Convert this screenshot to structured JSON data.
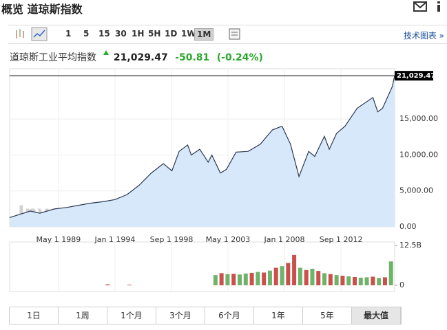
{
  "header": {
    "title": "概览 道琼斯指数"
  },
  "toolbar": {
    "intervals": [
      {
        "label": "1",
        "active": false
      },
      {
        "label": "5",
        "active": false
      },
      {
        "label": "15",
        "active": false
      },
      {
        "label": "30",
        "active": false
      },
      {
        "label": "1H",
        "active": false
      },
      {
        "label": "5H",
        "active": false
      },
      {
        "label": "1D",
        "active": false
      },
      {
        "label": "1W",
        "active": false
      },
      {
        "label": "1M",
        "active": true
      }
    ],
    "link": "技术图表 »"
  },
  "quote": {
    "name": "道琼斯工业平均指数",
    "price": "21,029.47",
    "change": "-50.81",
    "change_pct": "(-0.24%)"
  },
  "chart_data": {
    "type": "area",
    "watermark": "Investing.com",
    "xlim": [
      1985.3,
      2017.1
    ],
    "xticks": [
      {
        "value": 1989.33,
        "label": "May 1 1989"
      },
      {
        "value": 1994.0,
        "label": "Jan 1 1994"
      },
      {
        "value": 1998.67,
        "label": "Sep 1 1998"
      },
      {
        "value": 2003.33,
        "label": "May 1 2003"
      },
      {
        "value": 2008.0,
        "label": "Jan 1 2008"
      },
      {
        "value": 2012.67,
        "label": "Sep 1 2012"
      }
    ],
    "ylim": [
      0,
      22000
    ],
    "yticks": [
      {
        "value": 0,
        "label": "0.00"
      },
      {
        "value": 5000,
        "label": "5,000.00"
      },
      {
        "value": 10000,
        "label": "10,000.00"
      },
      {
        "value": 15000,
        "label": "15,000.00"
      }
    ],
    "grid": true,
    "series": [
      {
        "name": "道琼斯工业平均指数",
        "color": "#2b3650",
        "fill": "#d6e8fa",
        "x": [
          1985.3,
          1987,
          1987.8,
          1989,
          1990,
          1991,
          1992,
          1993,
          1994,
          1995,
          1996,
          1997,
          1998,
          1998.7,
          1999.3,
          2000,
          2000.3,
          2001,
          2001.7,
          2002,
          2002.7,
          2003.2,
          2004,
          2005,
          2006,
          2007,
          2007.8,
          2008.5,
          2009.2,
          2010,
          2010.5,
          2011.3,
          2011.7,
          2012.3,
          2013,
          2014,
          2015.3,
          2015.7,
          2016.1,
          2016.5,
          2016.9,
          2017.1
        ],
        "values": [
          1300,
          2200,
          1900,
          2500,
          2700,
          3000,
          3300,
          3500,
          3800,
          4500,
          5800,
          7500,
          8800,
          7800,
          10500,
          11400,
          10000,
          10800,
          9000,
          10000,
          7500,
          8000,
          10400,
          10500,
          11500,
          13500,
          14000,
          11500,
          7000,
          10500,
          9800,
          12600,
          10800,
          13000,
          14000,
          16500,
          18000,
          16000,
          16500,
          18000,
          19500,
          21029.47
        ],
        "value_labels": [
          null,
          null,
          null,
          null,
          null,
          null,
          null,
          null,
          null,
          null,
          null,
          null,
          null,
          null,
          null,
          null,
          null,
          null,
          null,
          null,
          null,
          null,
          null,
          null,
          null,
          null,
          null,
          null,
          null,
          null,
          null,
          null,
          null,
          null,
          null,
          null,
          null,
          null,
          null,
          null,
          null,
          "21,029.47"
        ]
      }
    ],
    "volume": {
      "ylim": [
        0,
        12.5
      ],
      "yticks": [
        {
          "value": 12.5,
          "label": "12.5B"
        },
        0
      ],
      "x": [
        1993.4,
        1995.2,
        2002.3,
        2002.8,
        2003.3,
        2003.8,
        2004.3,
        2004.8,
        2005.3,
        2005.8,
        2006.3,
        2006.8,
        2007.3,
        2007.8,
        2008.3,
        2008.8,
        2009.3,
        2009.8,
        2010.3,
        2010.8,
        2011.3,
        2011.8,
        2012.3,
        2012.8,
        2013.3,
        2013.8,
        2014.3,
        2014.8,
        2015.3,
        2015.8,
        2016.3,
        2016.8
      ],
      "values": [
        0.3,
        0.2,
        3.2,
        3.8,
        3.5,
        3.6,
        3.4,
        3.7,
        3.9,
        4.2,
        4.0,
        4.6,
        5.5,
        6.0,
        7.0,
        9.5,
        5.5,
        4.8,
        5.2,
        4.5,
        3.8,
        3.5,
        3.2,
        3.0,
        2.8,
        2.6,
        2.4,
        2.5,
        2.7,
        2.3,
        2.5,
        7.5
      ],
      "colors": [
        "#c9504b",
        "#c9504b",
        "#6fb36b",
        "#c9504b",
        "#6fb36b",
        "#c9504b",
        "#6fb36b",
        "#6fb36b",
        "#c9504b",
        "#6fb36b",
        "#c9504b",
        "#6fb36b",
        "#c9504b",
        "#6fb36b",
        "#c9504b",
        "#c9504b",
        "#6fb36b",
        "#c9504b",
        "#6fb36b",
        "#c9504b",
        "#6fb36b",
        "#c9504b",
        "#6fb36b",
        "#c9504b",
        "#6fb36b",
        "#c9504b",
        "#6fb36b",
        "#6fb36b",
        "#c9504b",
        "#6fb36b",
        "#c9504b",
        "#6fb36b"
      ]
    }
  },
  "tabs": [
    {
      "label": "1日",
      "active": false
    },
    {
      "label": "1周",
      "active": false
    },
    {
      "label": "1个月",
      "active": false
    },
    {
      "label": "3个月",
      "active": false
    },
    {
      "label": "6个月",
      "active": false
    },
    {
      "label": "1年",
      "active": false
    },
    {
      "label": "5年",
      "active": false
    },
    {
      "label": "最大值",
      "active": true
    }
  ]
}
